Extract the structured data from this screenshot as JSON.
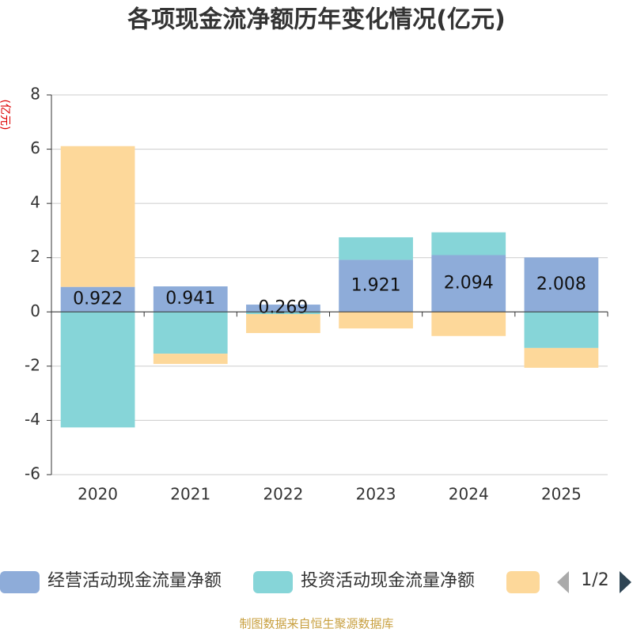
{
  "chart_data": {
    "type": "bar",
    "stacked": true,
    "title": "各项现金流净额历年变化情况(亿元)",
    "y_label": "(亿元)",
    "categories": [
      "2020",
      "2021",
      "2022",
      "2023",
      "2024",
      "2025"
    ],
    "series": [
      {
        "name": "经营活动现金流量净额",
        "color": "#8eacd9",
        "values": [
          0.922,
          0.941,
          0.269,
          1.921,
          2.094,
          2.008
        ],
        "show_labels": true
      },
      {
        "name": "投资活动现金流量净额",
        "color": "#86d5d8",
        "values": [
          -4.26,
          -1.54,
          -0.08,
          0.83,
          0.84,
          -1.33
        ]
      },
      {
        "color": "#fdd89a",
        "values": [
          5.19,
          -0.38,
          -0.7,
          -0.61,
          -0.89,
          -0.73
        ]
      }
    ],
    "ylim": [
      -6,
      8
    ],
    "yticks": [
      -6,
      -4,
      -2,
      0,
      2,
      4,
      6,
      8
    ],
    "grid": true,
    "legend_page": "1/2",
    "source": "制图数据来自恒生聚源数据库"
  }
}
